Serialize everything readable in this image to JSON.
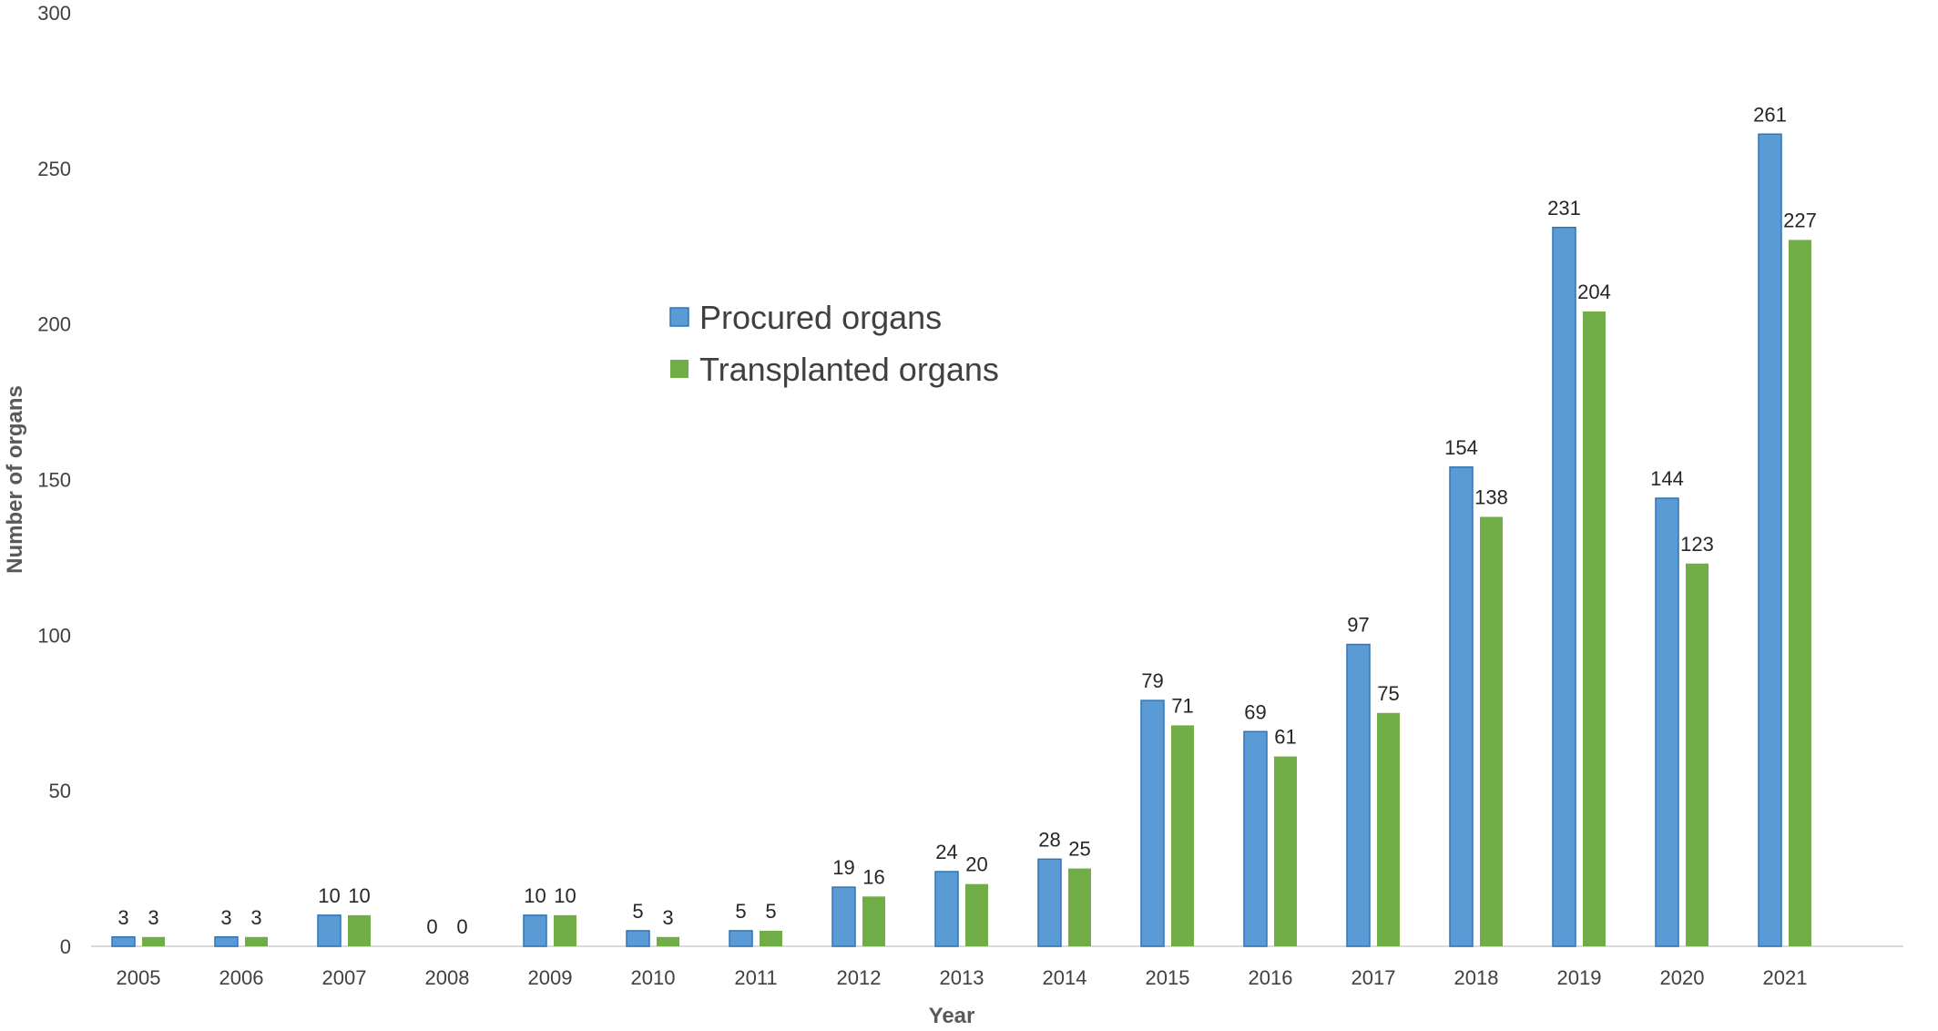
{
  "chart_data": {
    "type": "bar",
    "categories": [
      "2005",
      "2006",
      "2007",
      "2008",
      "2009",
      "2010",
      "2011",
      "2012",
      "2013",
      "2014",
      "2015",
      "2016",
      "2017",
      "2018",
      "2019",
      "2020",
      "2021"
    ],
    "series": [
      {
        "name": "Procured organs",
        "color": "#5b9bd5",
        "values": [
          3,
          3,
          10,
          0,
          10,
          5,
          5,
          19,
          24,
          28,
          79,
          69,
          97,
          154,
          231,
          144,
          261
        ]
      },
      {
        "name": "Transplanted organs",
        "color": "#70ad47",
        "values": [
          3,
          3,
          10,
          0,
          10,
          3,
          5,
          16,
          20,
          25,
          71,
          61,
          75,
          138,
          204,
          123,
          227
        ]
      }
    ],
    "xlabel": "Year",
    "ylabel": "Number  of organs",
    "ylim": [
      0,
      300
    ],
    "yticks": [
      "0",
      "50",
      "100",
      "150",
      "200",
      "250",
      "300"
    ],
    "grid": false,
    "legend_position": "upper-center"
  }
}
